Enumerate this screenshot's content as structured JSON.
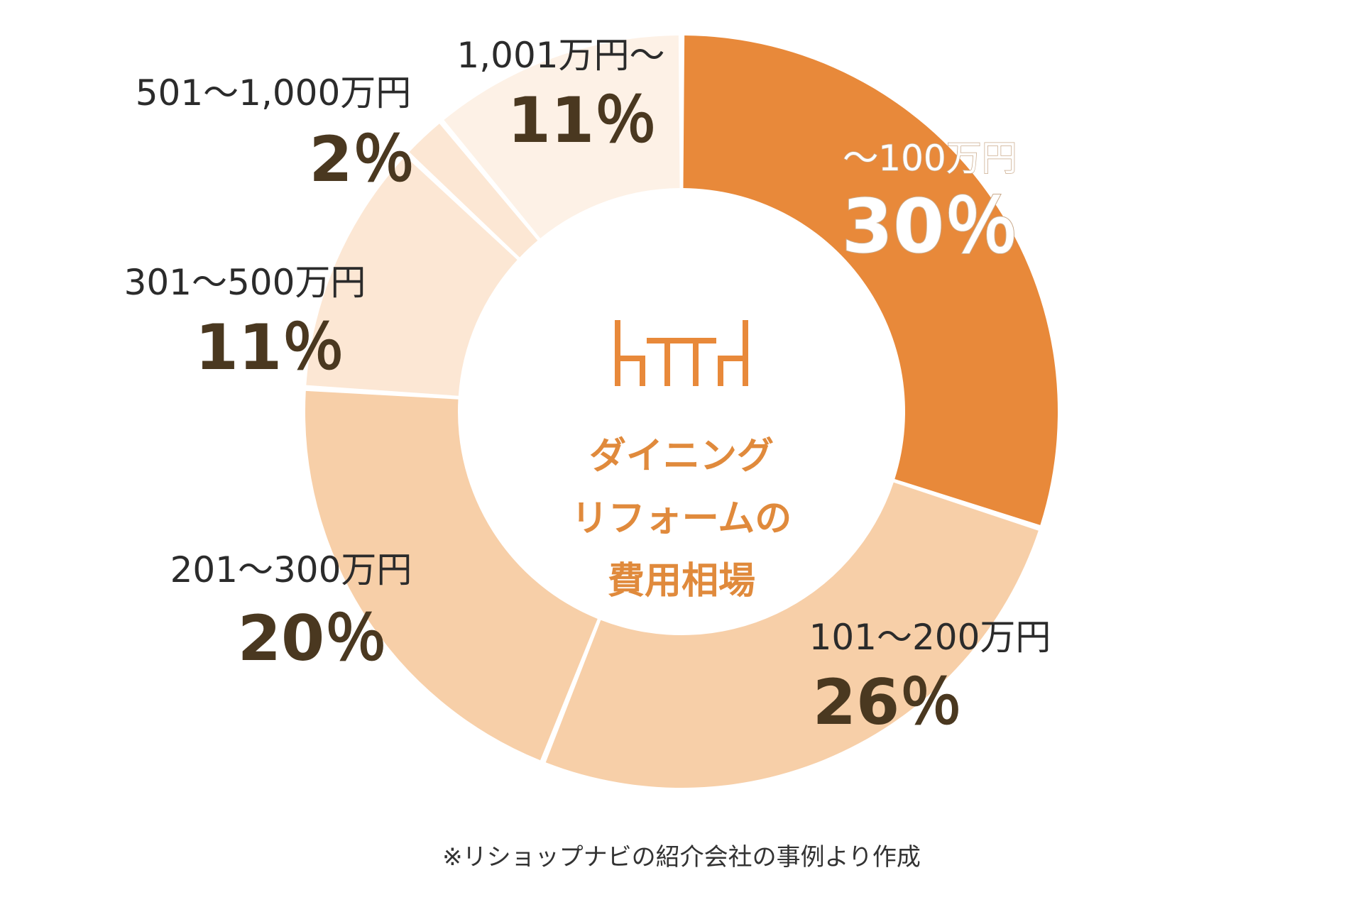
{
  "chart_data": {
    "type": "pie",
    "donut": true,
    "center_title": [
      "ダイニング",
      "リフォームの",
      "費用相場"
    ],
    "center_icon": "dining-table-chairs-icon",
    "value_suffix": "%",
    "slices": [
      {
        "label": "〜100万円",
        "value": 30,
        "value_text": "30％",
        "color": "#e8893a"
      },
      {
        "label": "101〜200万円",
        "value": 26,
        "value_text": "26％",
        "color": "#f7cfa8"
      },
      {
        "label": "201〜300万円",
        "value": 20,
        "value_text": "20％",
        "color": "#f7cfa8"
      },
      {
        "label": "301〜500万円",
        "value": 11,
        "value_text": "11％",
        "color": "#fce7d4"
      },
      {
        "label": "501〜1,000万円",
        "value": 2,
        "value_text": "2％",
        "color": "#fce7d4"
      },
      {
        "label": "1,001万円〜",
        "value": 11,
        "value_text": "11％",
        "color": "#fdf1e6"
      }
    ]
  },
  "footnote": "※リショップナビの紹介会社の事例より作成",
  "colors": {
    "accent": "#e8893a",
    "value_text": "#4a3820",
    "label_text": "#2b2b2b",
    "center_text": "#e08a3c"
  }
}
